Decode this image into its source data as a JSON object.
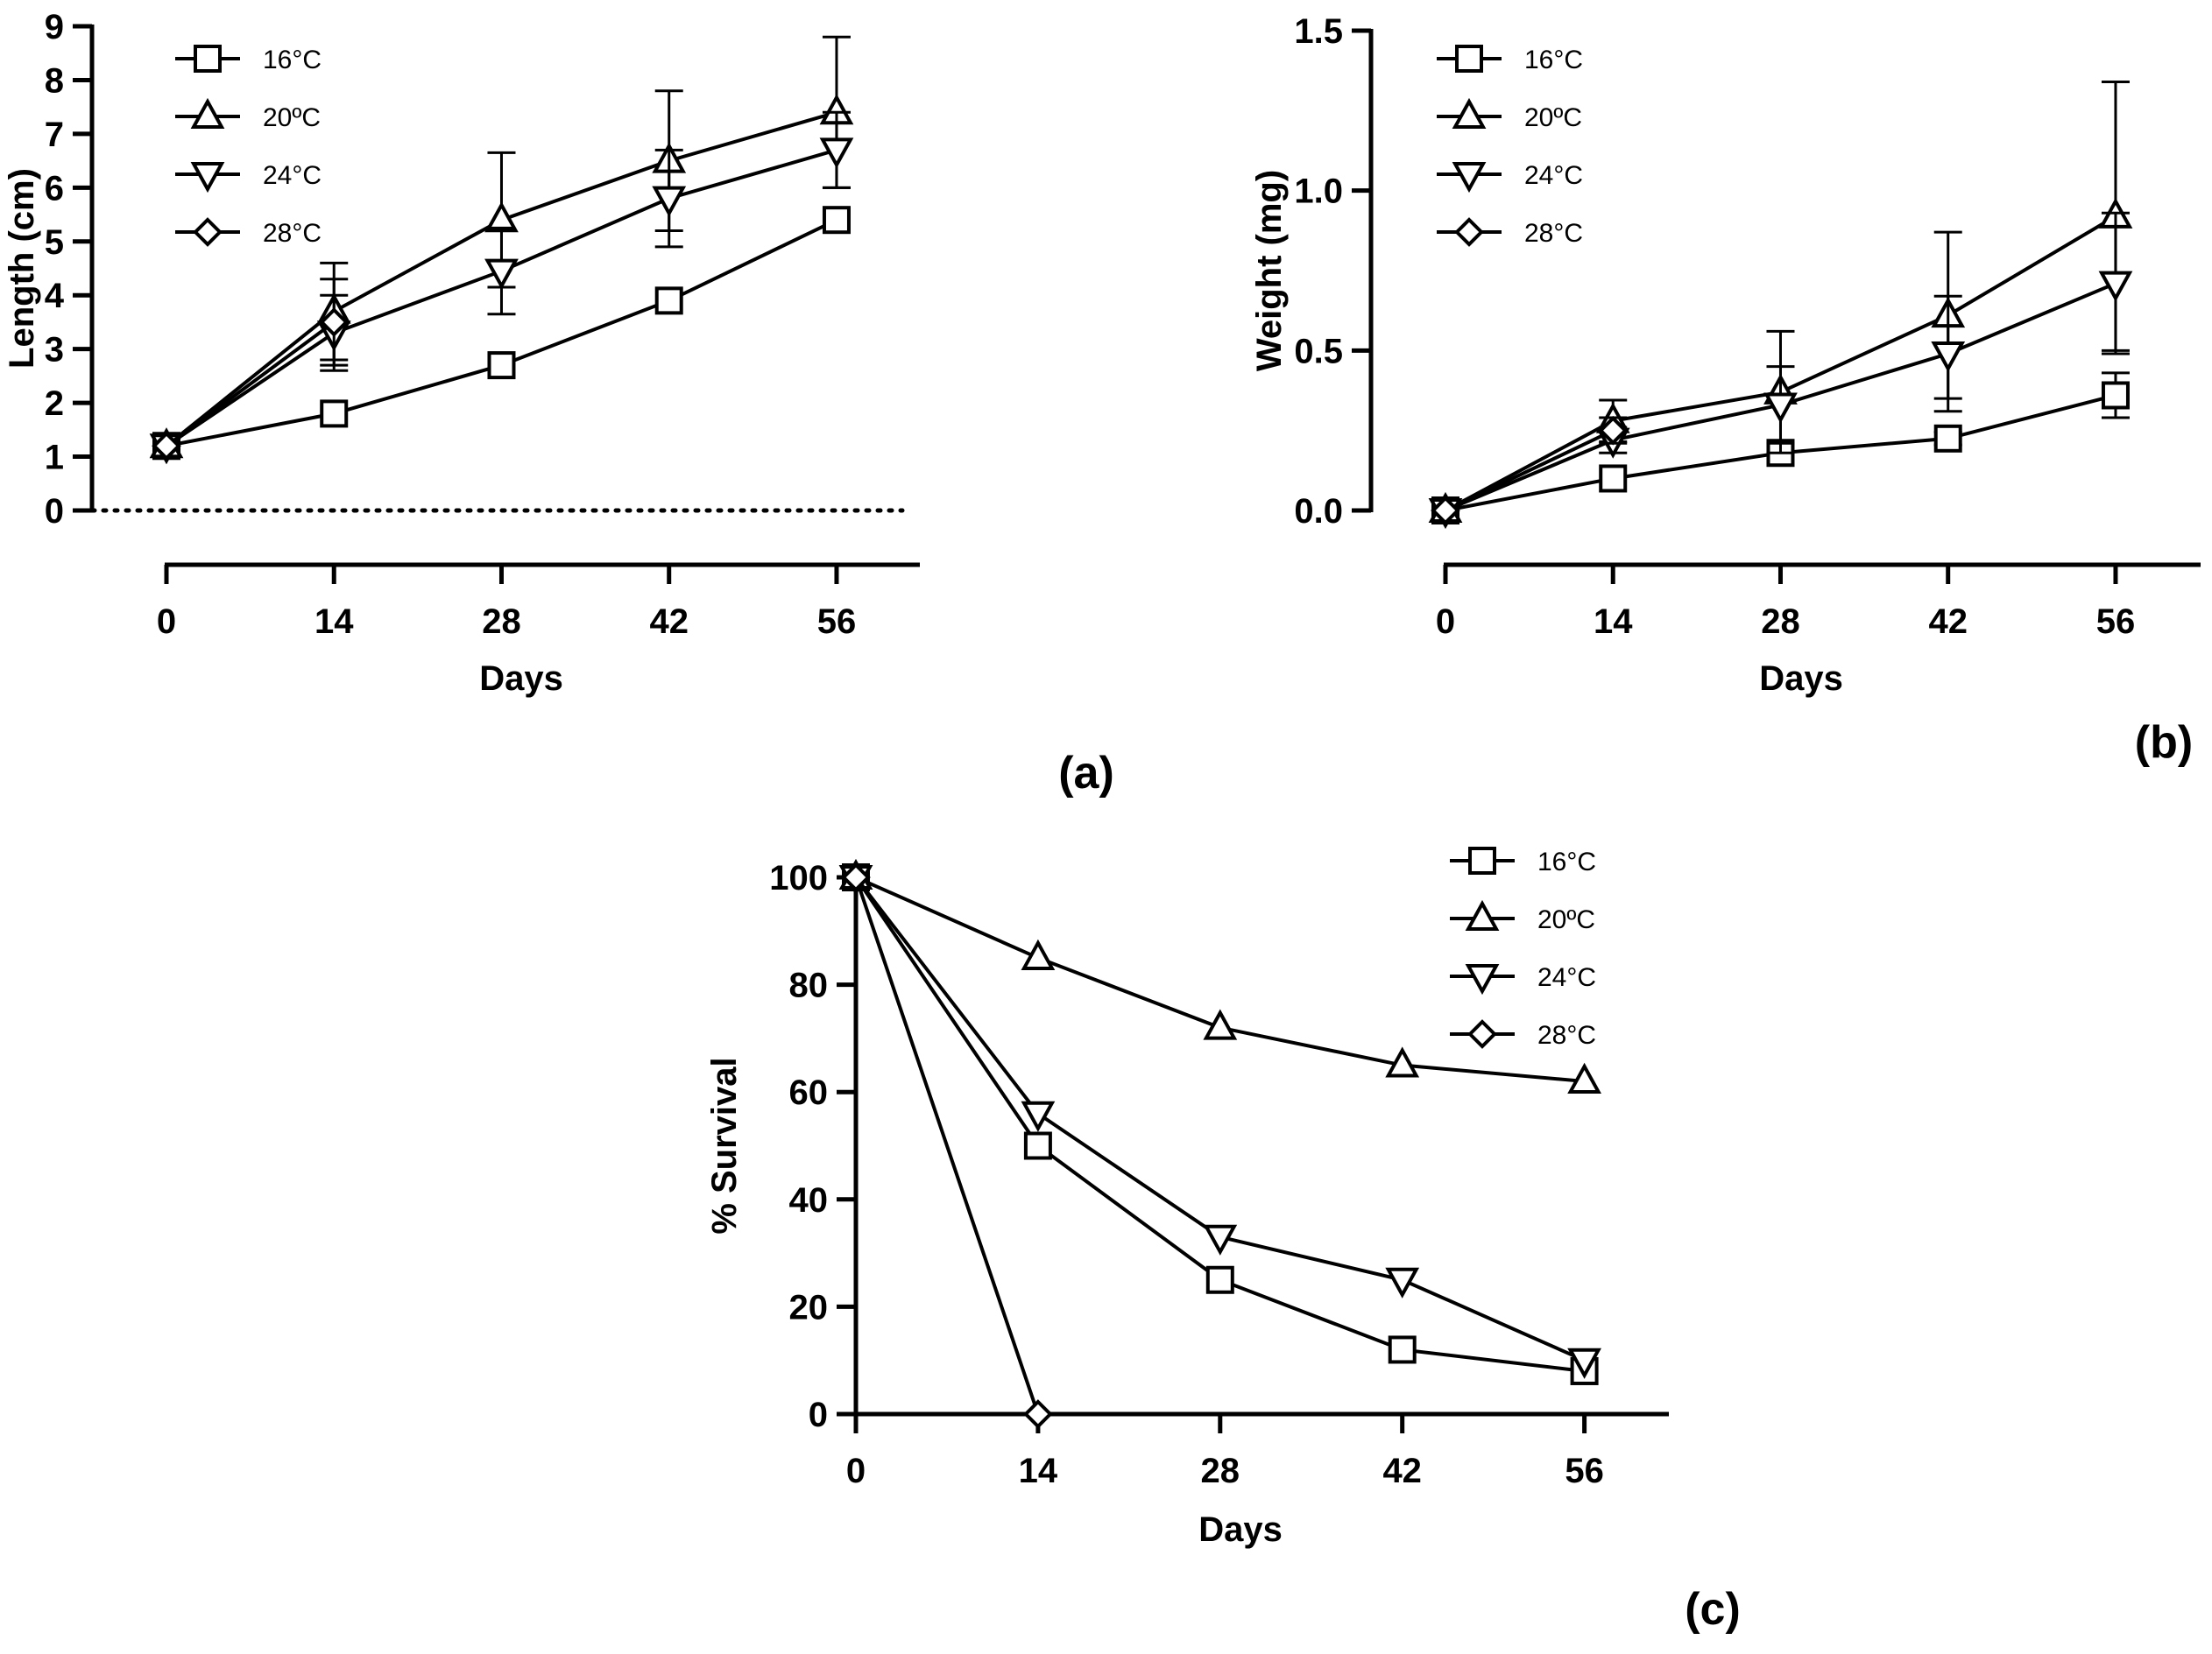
{
  "figure": {
    "panel_labels": [
      "(a)",
      "(b)",
      "(c)"
    ]
  },
  "chart_data": [
    {
      "id": "a",
      "type": "line",
      "panel_label": "(a)",
      "xlabel": "Days",
      "ylabel": "Length (cm)",
      "x": [
        0,
        14,
        28,
        42,
        56
      ],
      "xticks": [
        "0",
        "14",
        "28",
        "42",
        "56"
      ],
      "xlim": [
        0,
        63
      ],
      "ylim": [
        0,
        9
      ],
      "yticks": [
        "0",
        "1",
        "2",
        "3",
        "4",
        "5",
        "6",
        "7",
        "8",
        "9"
      ],
      "reference_line_y": 0,
      "legend_position": "top-left",
      "series": [
        {
          "name": "16°C",
          "marker": "square",
          "values": [
            1.2,
            1.8,
            2.7,
            3.9,
            5.4
          ],
          "errors": [
            0,
            0,
            0,
            0,
            0
          ]
        },
        {
          "name": "20ºC",
          "marker": "triangle-up",
          "values": [
            1.2,
            3.7,
            5.4,
            6.5,
            7.4
          ],
          "errors": [
            0,
            0.9,
            1.25,
            1.3,
            1.4
          ]
        },
        {
          "name": "24°C",
          "marker": "triangle-down",
          "values": [
            1.2,
            3.3,
            4.45,
            5.8,
            6.7
          ],
          "errors": [
            0,
            0.7,
            0.8,
            0.9,
            0.7
          ]
        },
        {
          "name": "28°C",
          "marker": "diamond",
          "values": [
            1.2,
            3.5,
            null,
            null,
            null
          ],
          "errors": [
            0,
            0.8,
            0,
            0,
            0
          ]
        }
      ]
    },
    {
      "id": "b",
      "type": "line",
      "panel_label": "(b)",
      "xlabel": "Days",
      "ylabel": "Weight (mg)",
      "x": [
        0,
        14,
        28,
        42,
        56
      ],
      "xticks": [
        "0",
        "14",
        "28",
        "42",
        "56"
      ],
      "xlim": [
        0,
        63
      ],
      "ylim": [
        0,
        1.5
      ],
      "yticks": [
        "0.0",
        "0.5",
        "1.0",
        "1.5"
      ],
      "yticks_values": [
        0,
        0.5,
        1.0,
        1.5
      ],
      "legend_position": "top-left",
      "series": [
        {
          "name": "16°C",
          "marker": "square",
          "values": [
            0.0,
            0.1,
            0.18,
            0.225,
            0.36
          ],
          "errors": [
            0,
            0,
            0,
            0.02,
            0.07
          ]
        },
        {
          "name": "20ºC",
          "marker": "triangle-up",
          "values": [
            0.0,
            0.28,
            0.37,
            0.61,
            0.92
          ],
          "errors": [
            0,
            0.065,
            0.19,
            0.26,
            0.42
          ]
        },
        {
          "name": "24°C",
          "marker": "triangle-down",
          "values": [
            0.0,
            0.22,
            0.33,
            0.49,
            0.71
          ],
          "errors": [
            0,
            0.04,
            0.12,
            0.18,
            0.22
          ]
        },
        {
          "name": "28°C",
          "marker": "diamond",
          "values": [
            0.0,
            0.25,
            null,
            null,
            null
          ],
          "errors": [
            0,
            0.04,
            0,
            0,
            0
          ]
        }
      ]
    },
    {
      "id": "c",
      "type": "line",
      "panel_label": "(c)",
      "xlabel": "Days",
      "ylabel": "% Survival",
      "x": [
        0,
        14,
        28,
        42,
        56
      ],
      "xticks": [
        "0",
        "14",
        "28",
        "42",
        "56"
      ],
      "xlim": [
        0,
        63
      ],
      "ylim": [
        0,
        100
      ],
      "yticks": [
        "0",
        "20",
        "40",
        "60",
        "80",
        "100"
      ],
      "legend_position": "top-right",
      "series": [
        {
          "name": "16°C",
          "marker": "square",
          "values": [
            100,
            50,
            25,
            12,
            8
          ],
          "errors": [
            0,
            0,
            0,
            0,
            0
          ]
        },
        {
          "name": "20ºC",
          "marker": "triangle-up",
          "values": [
            100,
            85,
            72,
            65,
            62
          ],
          "errors": [
            0,
            0,
            0,
            0,
            0
          ]
        },
        {
          "name": "24°C",
          "marker": "triangle-down",
          "values": [
            100,
            56,
            33,
            25,
            10
          ],
          "errors": [
            0,
            0,
            0,
            0,
            0
          ]
        },
        {
          "name": "28°C",
          "marker": "diamond",
          "values": [
            100,
            0,
            null,
            null,
            null
          ],
          "errors": [
            0,
            0,
            0,
            0,
            0
          ]
        }
      ]
    }
  ]
}
